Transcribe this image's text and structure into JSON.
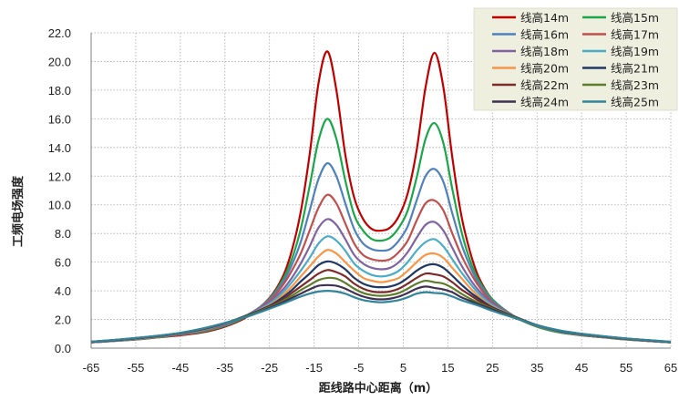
{
  "chart_data": {
    "type": "line",
    "xlabel": "距线路中心距离（m）",
    "ylabel": "工频电场强度",
    "xlim": [
      -65,
      65
    ],
    "ylim": [
      0,
      22
    ],
    "xticks": [
      "-65",
      "-55",
      "-45",
      "-35",
      "-25",
      "-15",
      "-5",
      "5",
      "15",
      "25",
      "35",
      "45",
      "55",
      "65"
    ],
    "yticks": [
      "0.0",
      "2.0",
      "4.0",
      "6.0",
      "8.0",
      "10.0",
      "12.0",
      "14.0",
      "16.0",
      "18.0",
      "20.0",
      "22.0"
    ],
    "grid": true,
    "legend_position": "top-right",
    "x": [
      -65,
      -60,
      -55,
      -50,
      -45,
      -40,
      -35,
      -30,
      -25,
      -22,
      -20,
      -18,
      -16,
      -14,
      -12,
      -10,
      -8,
      -6,
      -4,
      -2,
      0,
      2,
      4,
      6,
      8,
      10,
      12,
      14,
      16,
      18,
      20,
      22,
      25,
      30,
      35,
      40,
      45,
      50,
      55,
      60,
      65
    ],
    "series": [
      {
        "name": "线高14m",
        "color": "#c00000",
        "values": [
          0.4,
          0.5,
          0.6,
          0.75,
          0.9,
          1.1,
          1.5,
          2.2,
          3.5,
          5.0,
          6.8,
          9.5,
          13.5,
          18.5,
          20.7,
          18.0,
          13.5,
          10.5,
          9.0,
          8.3,
          8.2,
          8.4,
          9.2,
          10.8,
          13.8,
          18.2,
          20.6,
          18.2,
          13.3,
          9.3,
          6.7,
          4.9,
          3.4,
          2.2,
          1.5,
          1.1,
          0.9,
          0.75,
          0.6,
          0.5,
          0.4
        ]
      },
      {
        "name": "线高15m",
        "color": "#1ba64a",
        "values": [
          0.4,
          0.5,
          0.6,
          0.75,
          0.95,
          1.15,
          1.55,
          2.25,
          3.45,
          4.8,
          6.2,
          8.3,
          11.3,
          14.5,
          16.0,
          14.6,
          11.7,
          9.3,
          8.2,
          7.6,
          7.5,
          7.7,
          8.4,
          9.6,
          11.9,
          14.6,
          15.7,
          14.3,
          11.1,
          8.2,
          6.1,
          4.7,
          3.4,
          2.2,
          1.5,
          1.1,
          0.9,
          0.75,
          0.6,
          0.5,
          0.4
        ]
      },
      {
        "name": "线高16m",
        "color": "#4f81bd",
        "values": [
          0.4,
          0.5,
          0.62,
          0.78,
          0.95,
          1.2,
          1.6,
          2.3,
          3.4,
          4.6,
          5.8,
          7.4,
          9.6,
          11.8,
          12.9,
          12.0,
          10.1,
          8.3,
          7.3,
          6.9,
          6.8,
          6.9,
          7.5,
          8.5,
          10.3,
          12.0,
          12.5,
          11.6,
          9.4,
          7.3,
          5.7,
          4.5,
          3.3,
          2.2,
          1.55,
          1.15,
          0.92,
          0.77,
          0.62,
          0.5,
          0.4
        ]
      },
      {
        "name": "线高17m",
        "color": "#c0504d",
        "values": [
          0.4,
          0.52,
          0.63,
          0.78,
          0.97,
          1.22,
          1.65,
          2.3,
          3.3,
          4.4,
          5.4,
          6.6,
          8.2,
          9.8,
          10.7,
          10.1,
          8.7,
          7.3,
          6.5,
          6.2,
          6.1,
          6.2,
          6.7,
          7.5,
          8.9,
          10.1,
          10.3,
          9.6,
          8.0,
          6.5,
          5.3,
          4.3,
          3.2,
          2.2,
          1.55,
          1.17,
          0.93,
          0.77,
          0.62,
          0.5,
          0.4
        ]
      },
      {
        "name": "线高18m",
        "color": "#8064a2",
        "values": [
          0.42,
          0.52,
          0.64,
          0.8,
          0.98,
          1.25,
          1.68,
          2.3,
          3.2,
          4.1,
          4.9,
          5.9,
          7.1,
          8.4,
          9.0,
          8.6,
          7.6,
          6.5,
          5.9,
          5.6,
          5.5,
          5.6,
          6.0,
          6.7,
          7.7,
          8.6,
          8.8,
          8.2,
          7.0,
          5.8,
          4.8,
          4.0,
          3.1,
          2.2,
          1.57,
          1.18,
          0.94,
          0.78,
          0.63,
          0.51,
          0.41
        ]
      },
      {
        "name": "线高19m",
        "color": "#4bacc6",
        "values": [
          0.42,
          0.53,
          0.65,
          0.8,
          1.0,
          1.27,
          1.7,
          2.3,
          3.1,
          3.9,
          4.6,
          5.4,
          6.3,
          7.3,
          7.8,
          7.5,
          6.8,
          5.9,
          5.4,
          5.1,
          5.0,
          5.1,
          5.4,
          6.0,
          6.8,
          7.4,
          7.6,
          7.1,
          6.2,
          5.3,
          4.5,
          3.8,
          3.0,
          2.2,
          1.58,
          1.19,
          0.95,
          0.79,
          0.64,
          0.52,
          0.41
        ]
      },
      {
        "name": "线高20m",
        "color": "#f79646",
        "values": [
          0.43,
          0.54,
          0.66,
          0.82,
          1.02,
          1.3,
          1.72,
          2.3,
          3.0,
          3.7,
          4.3,
          5.0,
          5.7,
          6.4,
          6.85,
          6.6,
          6.0,
          5.4,
          4.9,
          4.7,
          4.6,
          4.7,
          4.9,
          5.4,
          6.0,
          6.5,
          6.6,
          6.3,
          5.6,
          4.9,
          4.2,
          3.6,
          2.9,
          2.2,
          1.6,
          1.2,
          0.96,
          0.8,
          0.65,
          0.53,
          0.42
        ]
      },
      {
        "name": "线高21m",
        "color": "#1f3864",
        "values": [
          0.43,
          0.54,
          0.67,
          0.83,
          1.03,
          1.32,
          1.73,
          2.3,
          2.95,
          3.55,
          4.05,
          4.65,
          5.2,
          5.8,
          6.05,
          5.9,
          5.5,
          4.9,
          4.5,
          4.3,
          4.25,
          4.3,
          4.5,
          4.9,
          5.4,
          5.75,
          5.85,
          5.6,
          5.05,
          4.45,
          3.9,
          3.45,
          2.85,
          2.2,
          1.6,
          1.2,
          0.97,
          0.8,
          0.65,
          0.53,
          0.42
        ]
      },
      {
        "name": "线高22m",
        "color": "#7b2c2a",
        "values": [
          0.44,
          0.55,
          0.68,
          0.84,
          1.04,
          1.33,
          1.74,
          2.25,
          2.9,
          3.4,
          3.85,
          4.3,
          4.75,
          5.2,
          5.45,
          5.3,
          5.0,
          4.5,
          4.15,
          3.95,
          3.9,
          3.95,
          4.15,
          4.5,
          4.9,
          5.2,
          5.15,
          5.0,
          4.6,
          4.1,
          3.7,
          3.3,
          2.8,
          2.15,
          1.6,
          1.21,
          0.98,
          0.81,
          0.66,
          0.54,
          0.43
        ]
      },
      {
        "name": "线高23m",
        "color": "#5e7d2a",
        "values": [
          0.44,
          0.56,
          0.69,
          0.85,
          1.05,
          1.35,
          1.75,
          2.25,
          2.85,
          3.3,
          3.65,
          4.05,
          4.4,
          4.75,
          4.9,
          4.85,
          4.55,
          4.15,
          3.85,
          3.7,
          3.65,
          3.7,
          3.85,
          4.15,
          4.5,
          4.7,
          4.6,
          4.5,
          4.2,
          3.8,
          3.45,
          3.15,
          2.75,
          2.15,
          1.6,
          1.22,
          0.99,
          0.81,
          0.66,
          0.54,
          0.43
        ]
      },
      {
        "name": "线高24m",
        "color": "#3f3151",
        "values": [
          0.45,
          0.56,
          0.7,
          0.86,
          1.06,
          1.36,
          1.75,
          2.2,
          2.8,
          3.2,
          3.5,
          3.8,
          4.1,
          4.35,
          4.4,
          4.35,
          4.15,
          3.85,
          3.6,
          3.45,
          3.4,
          3.45,
          3.6,
          3.85,
          4.15,
          4.3,
          4.2,
          4.1,
          3.9,
          3.55,
          3.3,
          3.05,
          2.7,
          2.1,
          1.6,
          1.23,
          1.0,
          0.82,
          0.67,
          0.55,
          0.44
        ]
      },
      {
        "name": "线高25m",
        "color": "#31859b",
        "values": [
          0.45,
          0.57,
          0.71,
          0.87,
          1.07,
          1.37,
          1.75,
          2.2,
          2.75,
          3.1,
          3.35,
          3.6,
          3.8,
          3.95,
          4.0,
          3.95,
          3.8,
          3.55,
          3.35,
          3.25,
          3.2,
          3.25,
          3.35,
          3.55,
          3.8,
          3.9,
          3.85,
          3.8,
          3.6,
          3.35,
          3.15,
          2.95,
          2.6,
          2.1,
          1.6,
          1.24,
          1.0,
          0.83,
          0.68,
          0.56,
          0.45
        ]
      }
    ]
  }
}
